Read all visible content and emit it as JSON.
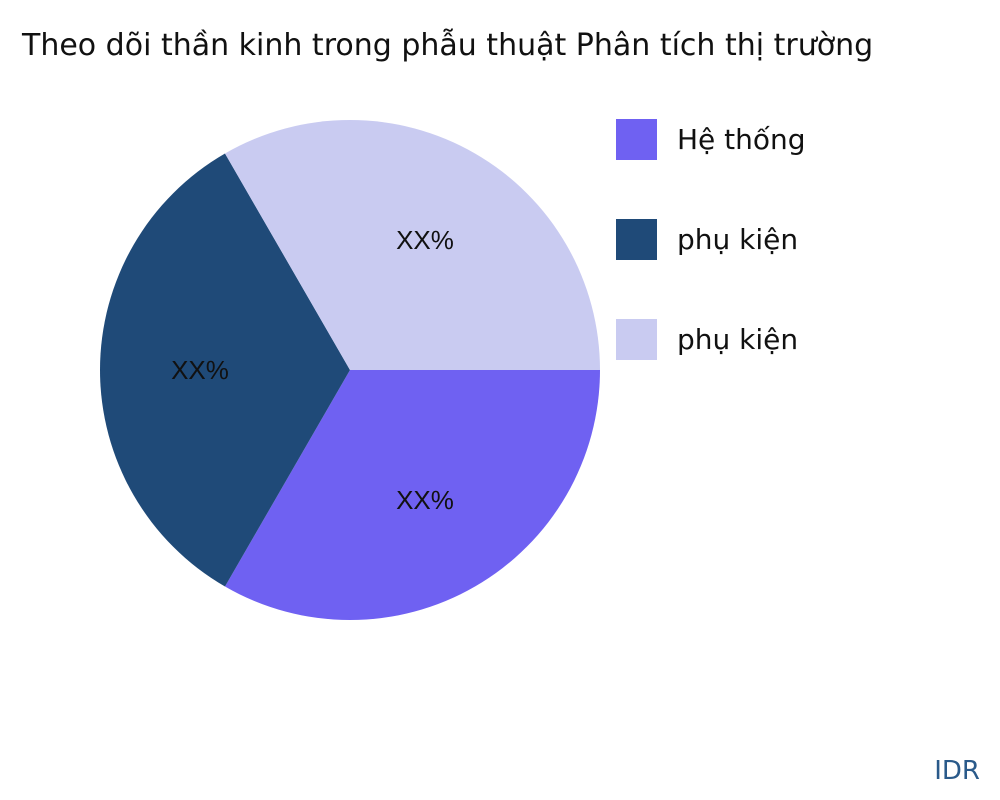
{
  "chart_data": {
    "type": "pie",
    "title": "Theo dõi thần kinh trong phẫu thuật Phân tích thị trường",
    "slices": [
      {
        "name": "Hệ thống",
        "value": 33.33,
        "label": "XX%",
        "color": "#6f61f2"
      },
      {
        "name": "phụ kiện",
        "value": 33.33,
        "label": "XX%",
        "color": "#1f4a78"
      },
      {
        "name": "phụ kiện",
        "value": 33.33,
        "label": "XX%",
        "color": "#c9cbf1"
      }
    ],
    "legend_position": "right"
  },
  "watermark": "IDR"
}
